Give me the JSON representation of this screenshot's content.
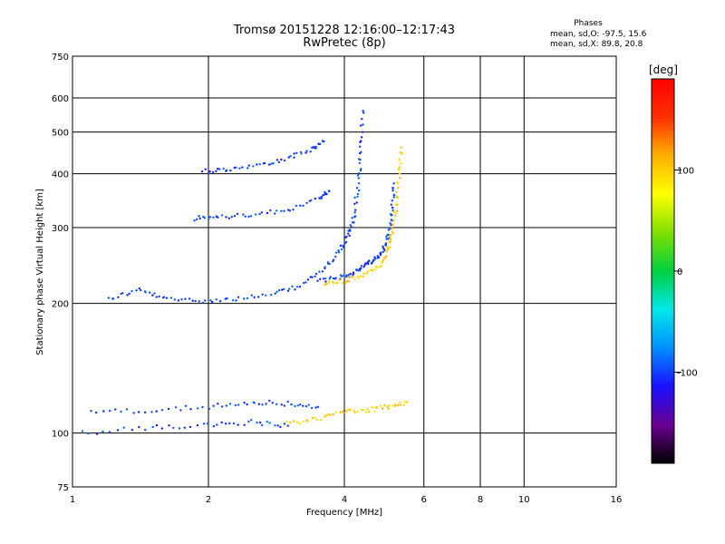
{
  "header": {
    "title": "Tromsø 20151228 12:16:00–12:17:43",
    "subtitle": "RwPretec (8p)",
    "stats_title": "Phases",
    "stats_o": "mean, sd,O: -97.5, 15.6",
    "stats_x": "mean, sd,X: 89.8, 20.8"
  },
  "colorbar": {
    "label": "[deg]",
    "ticks": [
      100,
      0,
      -100
    ],
    "range": [
      -190,
      190
    ],
    "stops": [
      "#000000",
      "#6a0090",
      "#1a10ff",
      "#0090ff",
      "#00e8e8",
      "#00d040",
      "#80e000",
      "#ffff00",
      "#ffb000",
      "#ff3000",
      "#ff0000"
    ]
  },
  "chart_data": {
    "type": "scatter",
    "xlabel": "Frequency [MHz]",
    "ylabel": "Stationary phase Virtual Height [km]",
    "xscale": "log",
    "yscale": "log",
    "xlim": [
      1,
      16
    ],
    "ylim": [
      75,
      750
    ],
    "xticks": [
      1,
      2,
      4,
      6,
      8,
      10,
      16
    ],
    "yticks": [
      75,
      100,
      200,
      300,
      400,
      500,
      600,
      750
    ],
    "grid": true,
    "color_meaning": "phase (deg)",
    "traces": [
      {
        "name": "",
        "phase": -100,
        "x": [
          1.2,
          1.4,
          1.6,
          1.9,
          2.3,
          2.8,
          3.2,
          3.6,
          3.9,
          4.1,
          4.2,
          4.3,
          4.35,
          4.4
        ],
        "y": [
          205,
          215,
          205,
          203,
          205,
          210,
          220,
          240,
          265,
          290,
          320,
          380,
          450,
          560
        ]
      },
      {
        "name": "",
        "phase": -100,
        "x": [
          3.5,
          3.9,
          4.2,
          4.4,
          4.6,
          4.8,
          4.95,
          5.05,
          5.1,
          5.15
        ],
        "y": [
          225,
          230,
          235,
          245,
          250,
          260,
          275,
          300,
          330,
          380
        ]
      },
      {
        "name": "",
        "phase": 100,
        "x": [
          3.6,
          4.0,
          4.4,
          4.8,
          5.0,
          5.1,
          5.2,
          5.3,
          5.35
        ],
        "y": [
          222,
          225,
          232,
          245,
          265,
          290,
          330,
          400,
          460
        ]
      },
      {
        "name": "",
        "phase": -100,
        "x": [
          1.85,
          2.1,
          2.5,
          3.0,
          3.5,
          3.7
        ],
        "y": [
          315,
          318,
          320,
          330,
          350,
          365
        ]
      },
      {
        "name": "",
        "phase": -100,
        "x": [
          1.95,
          2.2,
          2.6,
          3.0,
          3.4,
          3.6
        ],
        "y": [
          405,
          410,
          420,
          435,
          455,
          475
        ]
      },
      {
        "name": "",
        "phase": -100,
        "x": [
          1.05,
          1.5,
          2.0,
          2.5,
          3.0
        ],
        "y": [
          100,
          103,
          104,
          106,
          104
        ]
      },
      {
        "name": "",
        "phase": -100,
        "x": [
          1.1,
          1.5,
          2.0,
          2.5,
          3.0,
          3.5
        ],
        "y": [
          112,
          113,
          115,
          118,
          117,
          115
        ]
      },
      {
        "name": "",
        "phase": 100,
        "x": [
          3.0,
          3.5,
          4.0,
          4.5,
          5.0,
          5.5
        ],
        "y": [
          105,
          108,
          112,
          113,
          115,
          118
        ]
      }
    ]
  }
}
